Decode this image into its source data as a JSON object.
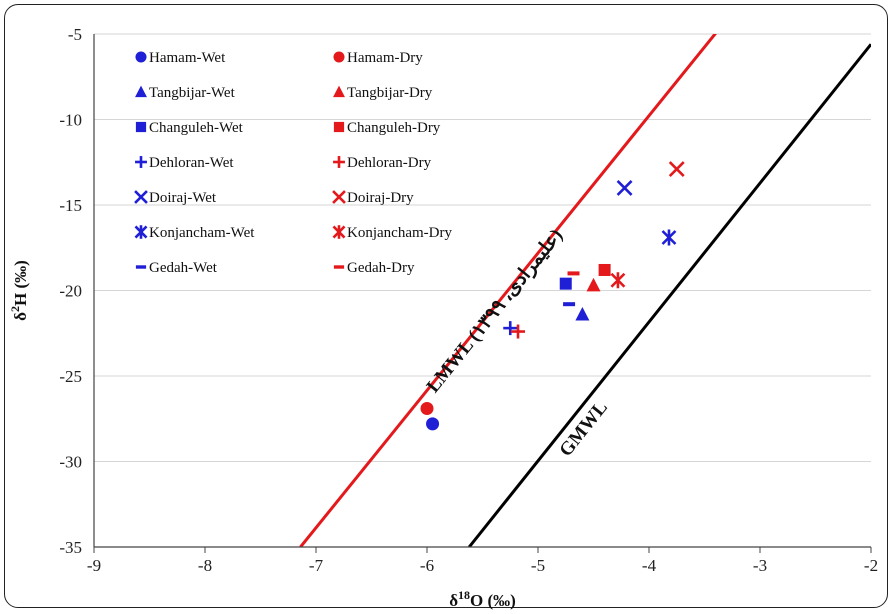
{
  "chart_data": {
    "type": "scatter",
    "xlabel": "δ18O (‰)",
    "ylabel": "δ2H (‰)",
    "xlim": [
      -9,
      -2
    ],
    "ylim": [
      -35,
      -5
    ],
    "x_ticks": [
      "-9",
      "-8",
      "-7",
      "-6",
      "-5",
      "-4",
      "-3",
      "-2"
    ],
    "y_ticks": [
      "-5",
      "-10",
      "-15",
      "-20",
      "-25",
      "-30",
      "-35"
    ],
    "grid": "horizontal",
    "legend_placement": "top-left",
    "colors": {
      "wet": "#1f1fd6",
      "dry": "#e3191c",
      "gmwl": "#000000",
      "lmwl": "#e3191c"
    },
    "series": [
      {
        "name": "Hamam-Wet",
        "marker": "circle",
        "color": "#1f1fd6",
        "points": [
          [
            -5.95,
            -27.8
          ]
        ]
      },
      {
        "name": "Hamam-Dry",
        "marker": "circle",
        "color": "#e3191c",
        "points": [
          [
            -6.0,
            -26.9
          ]
        ]
      },
      {
        "name": "Tangbijar-Wet",
        "marker": "triangle",
        "color": "#1f1fd6",
        "points": [
          [
            -4.6,
            -21.4
          ]
        ]
      },
      {
        "name": "Tangbijar-Dry",
        "marker": "triangle",
        "color": "#e3191c",
        "points": [
          [
            -4.5,
            -19.7
          ]
        ]
      },
      {
        "name": "Changuleh-Wet",
        "marker": "square",
        "color": "#1f1fd6",
        "points": [
          [
            -4.75,
            -19.6
          ]
        ]
      },
      {
        "name": "Changuleh-Dry",
        "marker": "square",
        "color": "#e3191c",
        "points": [
          [
            -4.4,
            -18.8
          ]
        ]
      },
      {
        "name": "Dehloran-Wet",
        "marker": "plus",
        "color": "#1f1fd6",
        "points": [
          [
            -5.25,
            -22.2
          ]
        ]
      },
      {
        "name": "Dehloran-Dry",
        "marker": "plus",
        "color": "#e3191c",
        "points": [
          [
            -5.18,
            -22.4
          ]
        ]
      },
      {
        "name": "Doiraj-Wet",
        "marker": "x",
        "color": "#1f1fd6",
        "points": [
          [
            -4.22,
            -14.0
          ]
        ]
      },
      {
        "name": "Doiraj-Dry",
        "marker": "x",
        "color": "#e3191c",
        "points": [
          [
            -3.75,
            -12.9
          ]
        ]
      },
      {
        "name": "Konjancham-Wet",
        "marker": "star",
        "color": "#1f1fd6",
        "points": [
          [
            -3.82,
            -16.9
          ]
        ]
      },
      {
        "name": "Konjancham-Dry",
        "marker": "star",
        "color": "#e3191c",
        "points": [
          [
            -4.28,
            -19.4
          ]
        ]
      },
      {
        "name": "Gedah-Wet",
        "marker": "dash",
        "color": "#1f1fd6",
        "points": [
          [
            -4.72,
            -20.8
          ]
        ]
      },
      {
        "name": "Gedah-Dry",
        "marker": "dash",
        "color": "#e3191c",
        "points": [
          [
            -4.68,
            -19.0
          ]
        ]
      }
    ],
    "lines": [
      {
        "name": "GMWL",
        "label": "GMWL",
        "color": "#000000",
        "points": [
          [
            -5.62,
            -35
          ],
          [
            -2.0,
            -5.6
          ]
        ]
      },
      {
        "name": "LMWL",
        "label": "LMWL (علیمرادی، ۱۳۹۹)",
        "color": "#e3191c",
        "points": [
          [
            -7.14,
            -35
          ],
          [
            -3.38,
            -4.8
          ]
        ]
      }
    ]
  }
}
